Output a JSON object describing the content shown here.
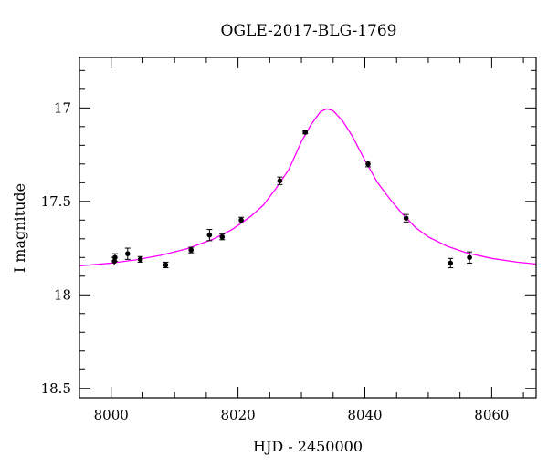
{
  "chart_data": {
    "type": "scatter",
    "title": "OGLE-2017-BLG-1769",
    "xlabel": "HJD - 2450000",
    "ylabel": "I magnitude",
    "xlim": [
      7995,
      8067
    ],
    "ylim": [
      18.55,
      16.73
    ],
    "y_inverted": true,
    "grid": false,
    "x_ticks": [
      8000,
      8020,
      8040,
      8060
    ],
    "x_tick_labels": [
      "8000",
      "8020",
      "8040",
      "8060"
    ],
    "y_ticks": [
      17,
      17.5,
      18,
      18.5
    ],
    "y_tick_labels": [
      "17",
      "17.5",
      "18",
      "18.5"
    ],
    "series": [
      {
        "kind": "points",
        "color": "#000000",
        "points": [
          {
            "x": 8000.5,
            "y": 17.82,
            "err": 0.02
          },
          {
            "x": 8000.6,
            "y": 17.8,
            "err": 0.02
          },
          {
            "x": 8002.6,
            "y": 17.78,
            "err": 0.03
          },
          {
            "x": 8004.6,
            "y": 17.81,
            "err": 0.015
          },
          {
            "x": 8008.6,
            "y": 17.84,
            "err": 0.015
          },
          {
            "x": 8012.6,
            "y": 17.76,
            "err": 0.015
          },
          {
            "x": 8015.5,
            "y": 17.68,
            "err": 0.03
          },
          {
            "x": 8017.5,
            "y": 17.69,
            "err": 0.015
          },
          {
            "x": 8020.5,
            "y": 17.6,
            "err": 0.015
          },
          {
            "x": 8026.6,
            "y": 17.39,
            "err": 0.02
          },
          {
            "x": 8030.6,
            "y": 17.13,
            "err": 0.008
          },
          {
            "x": 8040.5,
            "y": 17.3,
            "err": 0.015
          },
          {
            "x": 8046.5,
            "y": 17.59,
            "err": 0.02
          },
          {
            "x": 8053.5,
            "y": 17.83,
            "err": 0.025
          },
          {
            "x": 8056.5,
            "y": 17.8,
            "err": 0.03
          }
        ]
      },
      {
        "kind": "model",
        "color": "#ff00ff",
        "points": [
          {
            "x": 7995,
            "y": 17.845
          },
          {
            "x": 8000,
            "y": 17.83
          },
          {
            "x": 8004,
            "y": 17.812
          },
          {
            "x": 8008,
            "y": 17.787
          },
          {
            "x": 8012,
            "y": 17.753
          },
          {
            "x": 8016,
            "y": 17.703
          },
          {
            "x": 8019,
            "y": 17.652
          },
          {
            "x": 8022,
            "y": 17.58
          },
          {
            "x": 8024,
            "y": 17.52
          },
          {
            "x": 8026,
            "y": 17.43
          },
          {
            "x": 8028,
            "y": 17.33
          },
          {
            "x": 8030,
            "y": 17.18
          },
          {
            "x": 8031.5,
            "y": 17.09
          },
          {
            "x": 8033,
            "y": 17.02
          },
          {
            "x": 8034,
            "y": 17.005
          },
          {
            "x": 8035,
            "y": 17.015
          },
          {
            "x": 8036.5,
            "y": 17.07
          },
          {
            "x": 8038,
            "y": 17.15
          },
          {
            "x": 8040,
            "y": 17.28
          },
          {
            "x": 8042,
            "y": 17.4
          },
          {
            "x": 8044,
            "y": 17.49
          },
          {
            "x": 8046,
            "y": 17.57
          },
          {
            "x": 8048,
            "y": 17.64
          },
          {
            "x": 8050,
            "y": 17.69
          },
          {
            "x": 8053,
            "y": 17.74
          },
          {
            "x": 8056,
            "y": 17.775
          },
          {
            "x": 8060,
            "y": 17.805
          },
          {
            "x": 8064,
            "y": 17.825
          },
          {
            "x": 8067,
            "y": 17.835
          }
        ]
      }
    ]
  }
}
